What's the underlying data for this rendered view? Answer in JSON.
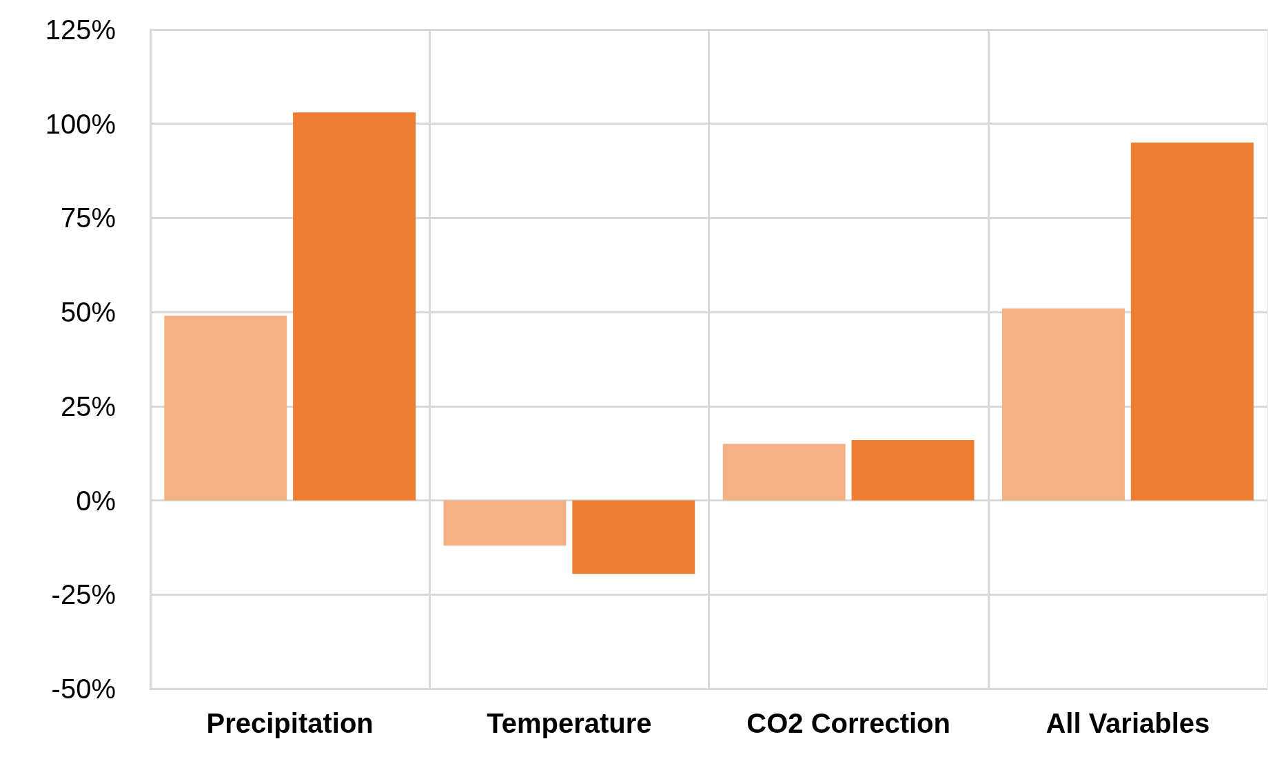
{
  "chart_data": {
    "type": "bar",
    "categories": [
      "Precipitation",
      "Temperature",
      "CO2 Correction",
      "All Variables"
    ],
    "series": [
      {
        "color": "#f4b183",
        "values": [
          49,
          -12,
          15,
          51
        ]
      },
      {
        "color": "#ed7d31",
        "values": [
          103,
          -19.5,
          16,
          95
        ]
      }
    ],
    "ylim": [
      -50,
      125
    ],
    "yticks": [
      {
        "value": -50,
        "label": "-50%"
      },
      {
        "value": -25,
        "label": "-25%"
      },
      {
        "value": 0,
        "label": "0%"
      },
      {
        "value": 25,
        "label": "25%"
      },
      {
        "value": 50,
        "label": "50%"
      },
      {
        "value": 75,
        "label": "75%"
      },
      {
        "value": 100,
        "label": "100%"
      },
      {
        "value": 125,
        "label": "125%"
      }
    ],
    "grid": true
  }
}
